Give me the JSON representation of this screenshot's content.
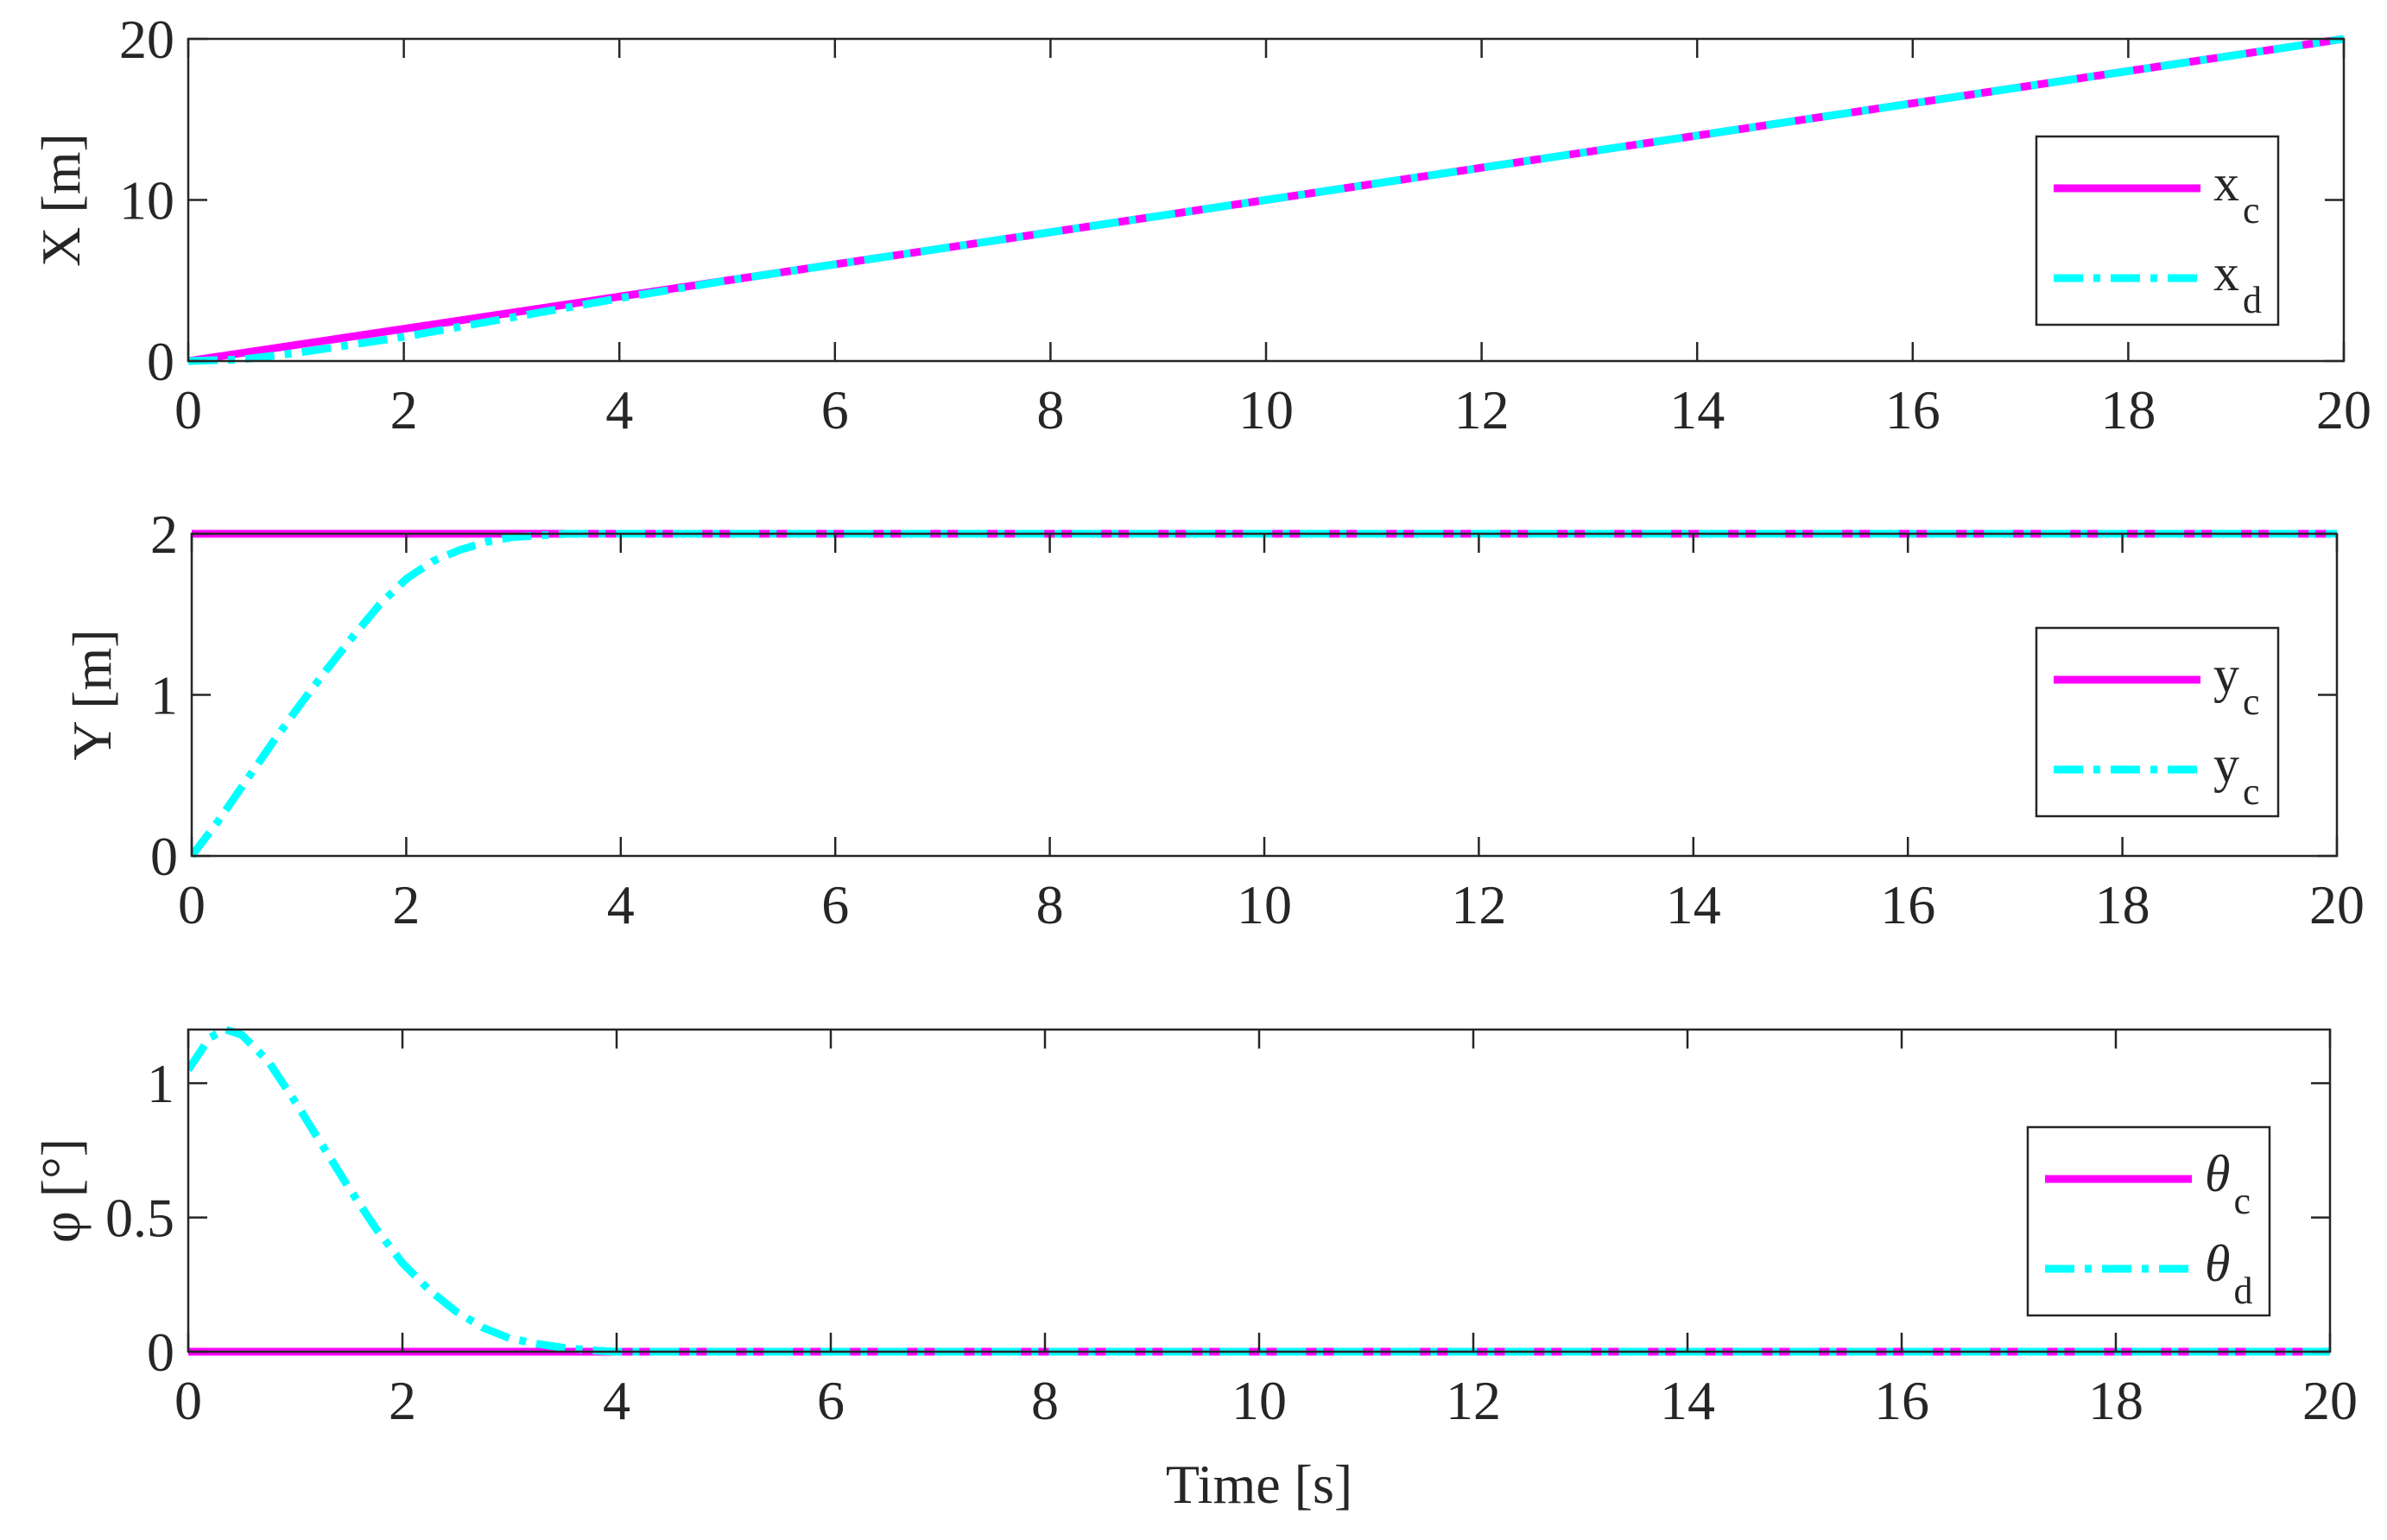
{
  "chart_data": [
    {
      "type": "line",
      "xlabel": "",
      "ylabel": "X [m]",
      "xlim": [
        0,
        20
      ],
      "ylim": [
        0,
        20
      ],
      "xticks": [
        0,
        2,
        4,
        6,
        8,
        10,
        12,
        14,
        16,
        18,
        20
      ],
      "yticks": [
        0,
        10,
        20
      ],
      "xtick_labels": [
        "0",
        "2",
        "4",
        "6",
        "8",
        "10",
        "12",
        "14",
        "16",
        "18",
        "20"
      ],
      "ytick_labels": [
        "0",
        "10",
        "20"
      ],
      "grid": false,
      "legend_position": "right",
      "series": [
        {
          "name_main": "x",
          "name_sub": "c",
          "color": "#ff00ff",
          "style": "solid",
          "x": [
            0,
            20
          ],
          "y": [
            0,
            20
          ]
        },
        {
          "name_main": "x",
          "name_sub": "d",
          "color": "#00ffff",
          "style": "dashdot",
          "x": [
            0,
            0.5,
            1,
            1.5,
            2,
            2.5,
            3,
            3.5,
            4,
            5,
            6,
            8,
            10,
            12,
            14,
            16,
            18,
            20
          ],
          "y": [
            0,
            0.1,
            0.5,
            1.0,
            1.5,
            2.1,
            2.7,
            3.3,
            3.9,
            5.0,
            6.0,
            8.0,
            10.0,
            12.0,
            14.0,
            16.0,
            18.0,
            20.0
          ]
        }
      ]
    },
    {
      "type": "line",
      "xlabel": "",
      "ylabel": "Y [m]",
      "xlim": [
        0,
        20
      ],
      "ylim": [
        0,
        2
      ],
      "xticks": [
        0,
        2,
        4,
        6,
        8,
        10,
        12,
        14,
        16,
        18,
        20
      ],
      "yticks": [
        0,
        1,
        2
      ],
      "xtick_labels": [
        "0",
        "2",
        "4",
        "6",
        "8",
        "10",
        "12",
        "14",
        "16",
        "18",
        "20"
      ],
      "ytick_labels": [
        "0",
        "1",
        "2"
      ],
      "grid": false,
      "legend_position": "right",
      "series": [
        {
          "name_main": "y",
          "name_sub": "c",
          "color": "#ff00ff",
          "style": "solid",
          "x": [
            0,
            20
          ],
          "y": [
            2,
            2
          ]
        },
        {
          "name_main": "y",
          "name_sub": "c",
          "color": "#00ffff",
          "style": "dashdot",
          "x": [
            0,
            0.25,
            0.5,
            0.75,
            1,
            1.25,
            1.5,
            1.75,
            2,
            2.25,
            2.5,
            2.75,
            3,
            3.25,
            3.5,
            3.75,
            4,
            5,
            20
          ],
          "y": [
            0,
            0.22,
            0.46,
            0.7,
            0.93,
            1.15,
            1.36,
            1.56,
            1.72,
            1.83,
            1.9,
            1.95,
            1.98,
            1.99,
            2.0,
            2.0,
            2.0,
            2.0,
            2.0
          ]
        }
      ]
    },
    {
      "type": "line",
      "xlabel": "Time [s]",
      "ylabel": "φ [°]",
      "xlim": [
        0,
        20
      ],
      "ylim": [
        0,
        1.2
      ],
      "xticks": [
        0,
        2,
        4,
        6,
        8,
        10,
        12,
        14,
        16,
        18,
        20
      ],
      "yticks": [
        0,
        0.5,
        1
      ],
      "xtick_labels": [
        "0",
        "2",
        "4",
        "6",
        "8",
        "10",
        "12",
        "14",
        "16",
        "18",
        "20"
      ],
      "ytick_labels": [
        "0",
        "0.5",
        "1"
      ],
      "grid": false,
      "legend_position": "right",
      "series": [
        {
          "name_main": "θ",
          "name_sub": "c",
          "color": "#ff00ff",
          "style": "solid",
          "x": [
            0,
            20
          ],
          "y": [
            0,
            0
          ]
        },
        {
          "name_main": "θ",
          "name_sub": "d",
          "color": "#00ffff",
          "style": "dashdot",
          "x": [
            0,
            0.2,
            0.35,
            0.5,
            0.75,
            1,
            1.25,
            1.5,
            1.75,
            2,
            2.25,
            2.5,
            2.75,
            3,
            3.25,
            3.5,
            3.75,
            4,
            4.5,
            5,
            20
          ],
          "y": [
            1.05,
            1.17,
            1.2,
            1.18,
            1.08,
            0.93,
            0.77,
            0.61,
            0.46,
            0.33,
            0.23,
            0.15,
            0.09,
            0.05,
            0.03,
            0.015,
            0.005,
            0.0,
            0.0,
            0.0,
            0.0
          ]
        }
      ]
    }
  ]
}
